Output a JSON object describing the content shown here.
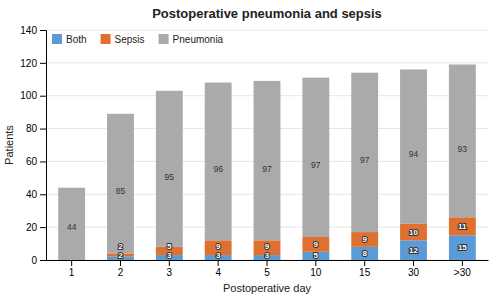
{
  "chart_data": {
    "type": "bar",
    "stacked": true,
    "title": "Postoperative pneumonia and sepsis",
    "xlabel": "Postoperative day",
    "ylabel": "Patients",
    "categories": [
      "1",
      "2",
      "3",
      "4",
      "5",
      "10",
      "15",
      "30",
      ">30"
    ],
    "series": [
      {
        "name": "Both",
        "color": "#5b9bd5",
        "values": [
          0,
          2,
          3,
          3,
          3,
          5,
          8,
          12,
          15
        ]
      },
      {
        "name": "Sepsis",
        "color": "#e07030",
        "values": [
          0,
          2,
          5,
          9,
          9,
          9,
          9,
          10,
          11
        ]
      },
      {
        "name": "Pneumonia",
        "color": "#aaaaaa",
        "values": [
          44,
          85,
          95,
          96,
          97,
          97,
          97,
          94,
          93
        ]
      }
    ],
    "ylim": [
      0,
      140
    ],
    "yticks": [
      0,
      20,
      40,
      60,
      80,
      100,
      120,
      140
    ],
    "grid": true,
    "legend": "upper left",
    "data_labels": true
  }
}
